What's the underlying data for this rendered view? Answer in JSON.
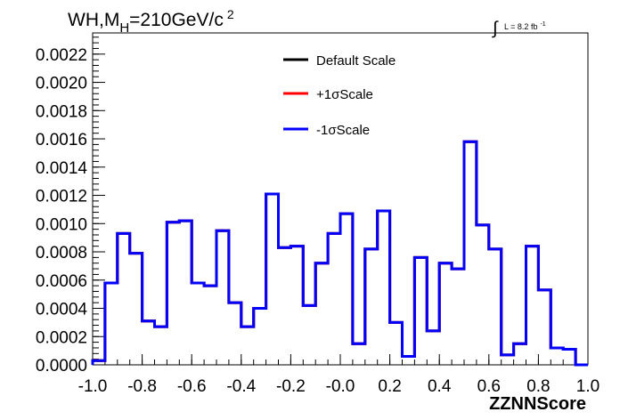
{
  "chart_data": {
    "type": "histogram",
    "title": "WH,M",
    "title_subscript": "H",
    "title_rest": "=210GeV/c",
    "title_superscript": "2",
    "lumi": {
      "integral": "∫",
      "text": "L = 8.2 fb",
      "superscript": "-1"
    },
    "xlabel": "ZZNNScore",
    "ylabel": "",
    "xlim": [
      -1.0,
      1.0
    ],
    "ylim": [
      0.0,
      0.00235
    ],
    "x_ticks": [
      "-1.0",
      "-0.8",
      "-0.6",
      "-0.4",
      "-0.2",
      "-0.0",
      "0.2",
      "0.4",
      "0.6",
      "0.8",
      "1.0"
    ],
    "x_tick_values": [
      -1.0,
      -0.8,
      -0.6,
      -0.4,
      -0.2,
      0.0,
      0.2,
      0.4,
      0.6,
      0.8,
      1.0
    ],
    "y_ticks": [
      "0.0000",
      "0.0002",
      "0.0004",
      "0.0006",
      "0.0008",
      "0.0010",
      "0.0012",
      "0.0014",
      "0.0016",
      "0.0018",
      "0.0020",
      "0.0022"
    ],
    "y_tick_values": [
      0.0,
      0.0002,
      0.0004,
      0.0006,
      0.0008,
      0.001,
      0.0012,
      0.0014,
      0.0016,
      0.0018,
      0.002,
      0.0022
    ],
    "bin_edges": [
      -1.0,
      -0.95,
      -0.9,
      -0.85,
      -0.8,
      -0.75,
      -0.7,
      -0.65,
      -0.6,
      -0.55,
      -0.5,
      -0.45,
      -0.4,
      -0.35,
      -0.3,
      -0.25,
      -0.2,
      -0.15,
      -0.1,
      -0.05,
      0.0,
      0.05,
      0.1,
      0.15,
      0.2,
      0.25,
      0.3,
      0.35,
      0.4,
      0.45,
      0.5,
      0.55,
      0.6,
      0.65,
      0.7,
      0.75,
      0.8,
      0.85,
      0.9,
      0.95,
      1.0
    ],
    "series": [
      {
        "name": "Default Scale",
        "color": "#000000",
        "values": [
          3e-05,
          0.00058,
          0.00093,
          0.00079,
          0.00031,
          0.00027,
          0.00101,
          0.00102,
          0.00058,
          0.00056,
          0.00095,
          0.00044,
          0.00027,
          0.0004,
          0.00121,
          0.00083,
          0.00084,
          0.00042,
          0.00072,
          0.00093,
          0.00107,
          0.00015,
          0.00082,
          0.00109,
          0.0003,
          6e-05,
          0.00076,
          0.00024,
          0.00072,
          0.00068,
          0.00158,
          0.00099,
          0.00082,
          7e-05,
          0.00015,
          0.00084,
          0.00053,
          0.00012,
          0.00011,
          0.0
        ]
      },
      {
        "name": "+1σScale",
        "color": "#ff0000",
        "values": [
          3e-05,
          0.00058,
          0.00093,
          0.00079,
          0.00031,
          0.00027,
          0.00101,
          0.00102,
          0.00058,
          0.00056,
          0.00095,
          0.00044,
          0.00027,
          0.0004,
          0.00121,
          0.00083,
          0.00084,
          0.00042,
          0.00072,
          0.00093,
          0.00107,
          0.00015,
          0.00082,
          0.00109,
          0.0003,
          6e-05,
          0.00076,
          0.00024,
          0.00072,
          0.00068,
          0.00158,
          0.00099,
          0.00082,
          7e-05,
          0.00015,
          0.00084,
          0.00053,
          0.00012,
          0.00011,
          0.0
        ]
      },
      {
        "name": "-1σScale",
        "color": "#0000ff",
        "values": [
          3e-05,
          0.00058,
          0.00093,
          0.00079,
          0.00031,
          0.00027,
          0.00101,
          0.00102,
          0.00058,
          0.00056,
          0.00095,
          0.00044,
          0.00027,
          0.0004,
          0.00121,
          0.00083,
          0.00084,
          0.00042,
          0.00072,
          0.00093,
          0.00107,
          0.00015,
          0.00082,
          0.00109,
          0.0003,
          6e-05,
          0.00076,
          0.00024,
          0.00072,
          0.00068,
          0.00158,
          0.00099,
          0.00082,
          7e-05,
          0.00015,
          0.00084,
          0.00053,
          0.00012,
          0.00011,
          0.0
        ]
      }
    ],
    "legend_position": "top-center",
    "grid": false
  }
}
